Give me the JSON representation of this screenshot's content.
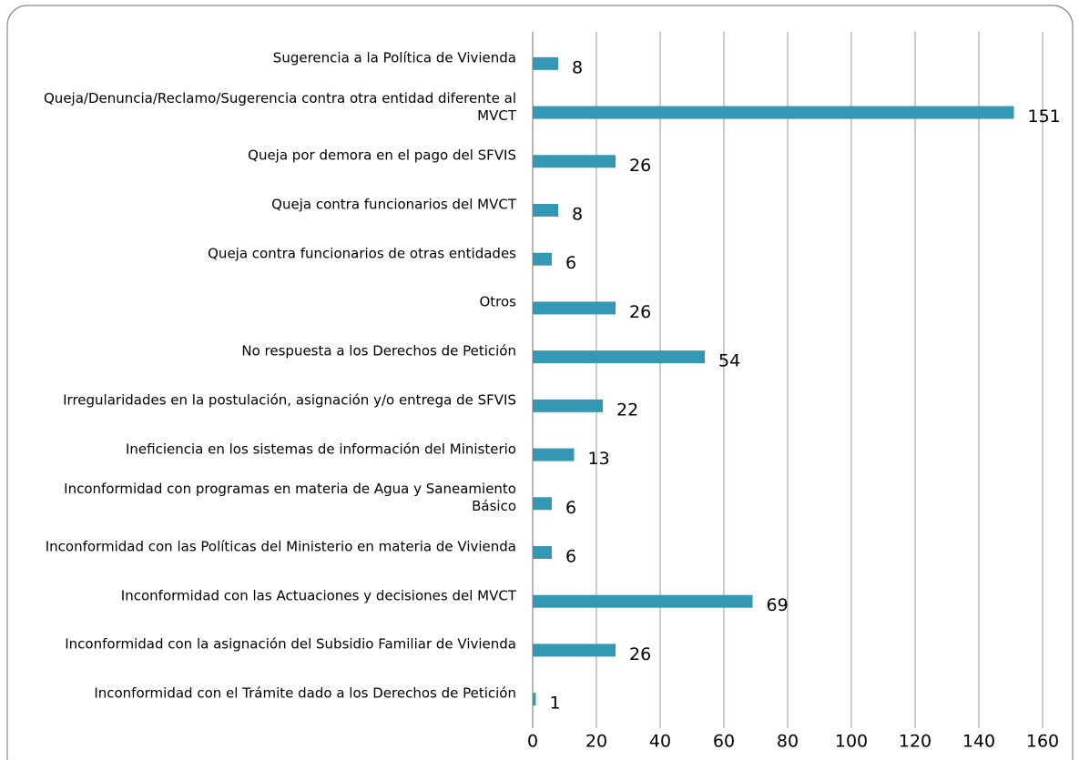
{
  "chart_data": {
    "type": "bar",
    "orientation": "horizontal",
    "categories": [
      "Sugerencia a la Política de Vivienda",
      "Queja/Denuncia/Reclamo/Sugerencia contra otra entidad diferente al MVCT",
      "Queja por demora en el pago del SFVIS",
      "Queja contra funcionarios del MVCT",
      "Queja contra funcionarios de otras entidades",
      "Otros",
      "No respuesta a los Derechos de Petición",
      "Irregularidades en la postulación, asignación y/o entrega de SFVIS",
      "Ineficiencia en los sistemas de información del Ministerio",
      "Inconformidad con programas en materia de Agua y Saneamiento Básico",
      "Inconformidad con las Políticas del Ministerio en materia de Vivienda",
      "Inconformidad con las Actuaciones y decisiones del MVCT",
      "Inconformidad con la asignación del Subsidio Familiar de Vivienda",
      "Inconformidad con el Trámite dado a los Derechos de Petición"
    ],
    "values": [
      8,
      151,
      26,
      8,
      6,
      26,
      54,
      22,
      13,
      6,
      6,
      69,
      26,
      1
    ],
    "color": "#3498b4",
    "xlim": [
      0,
      160
    ],
    "xticks": [
      0,
      20,
      40,
      60,
      80,
      100,
      120,
      140,
      160
    ],
    "grid": true
  }
}
